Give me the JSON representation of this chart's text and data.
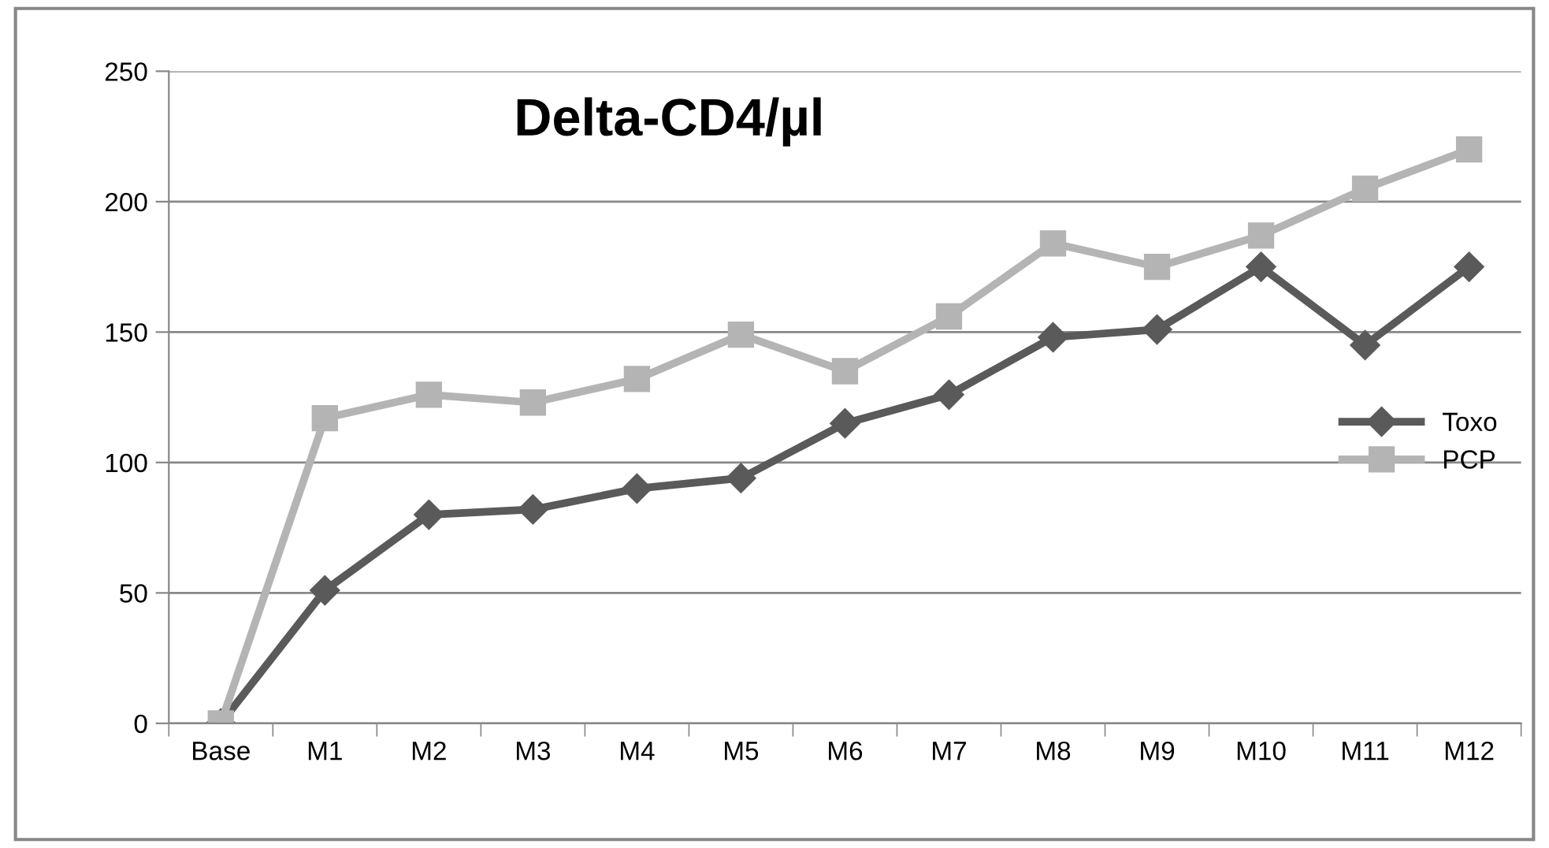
{
  "chart_data": {
    "type": "line",
    "title": "Delta-CD4/µl",
    "categories": [
      "Base",
      "M1",
      "M2",
      "M3",
      "M4",
      "M5",
      "M6",
      "M7",
      "M8",
      "M9",
      "M10",
      "M11",
      "M12"
    ],
    "series": [
      {
        "name": "Toxo",
        "color": "#5a5a5a",
        "marker": "diamond",
        "values": [
          0,
          51,
          80,
          82,
          90,
          94,
          115,
          126,
          148,
          151,
          175,
          145,
          175
        ]
      },
      {
        "name": "PCP",
        "color": "#b4b4b4",
        "marker": "square",
        "values": [
          0,
          117,
          126,
          123,
          132,
          149,
          135,
          156,
          184,
          175,
          187,
          205,
          220
        ]
      }
    ],
    "ylim": [
      0,
      250
    ],
    "yticks": [
      0,
      50,
      100,
      150,
      200,
      250
    ],
    "grid": "y",
    "legend": "right",
    "line_style": "solid"
  }
}
